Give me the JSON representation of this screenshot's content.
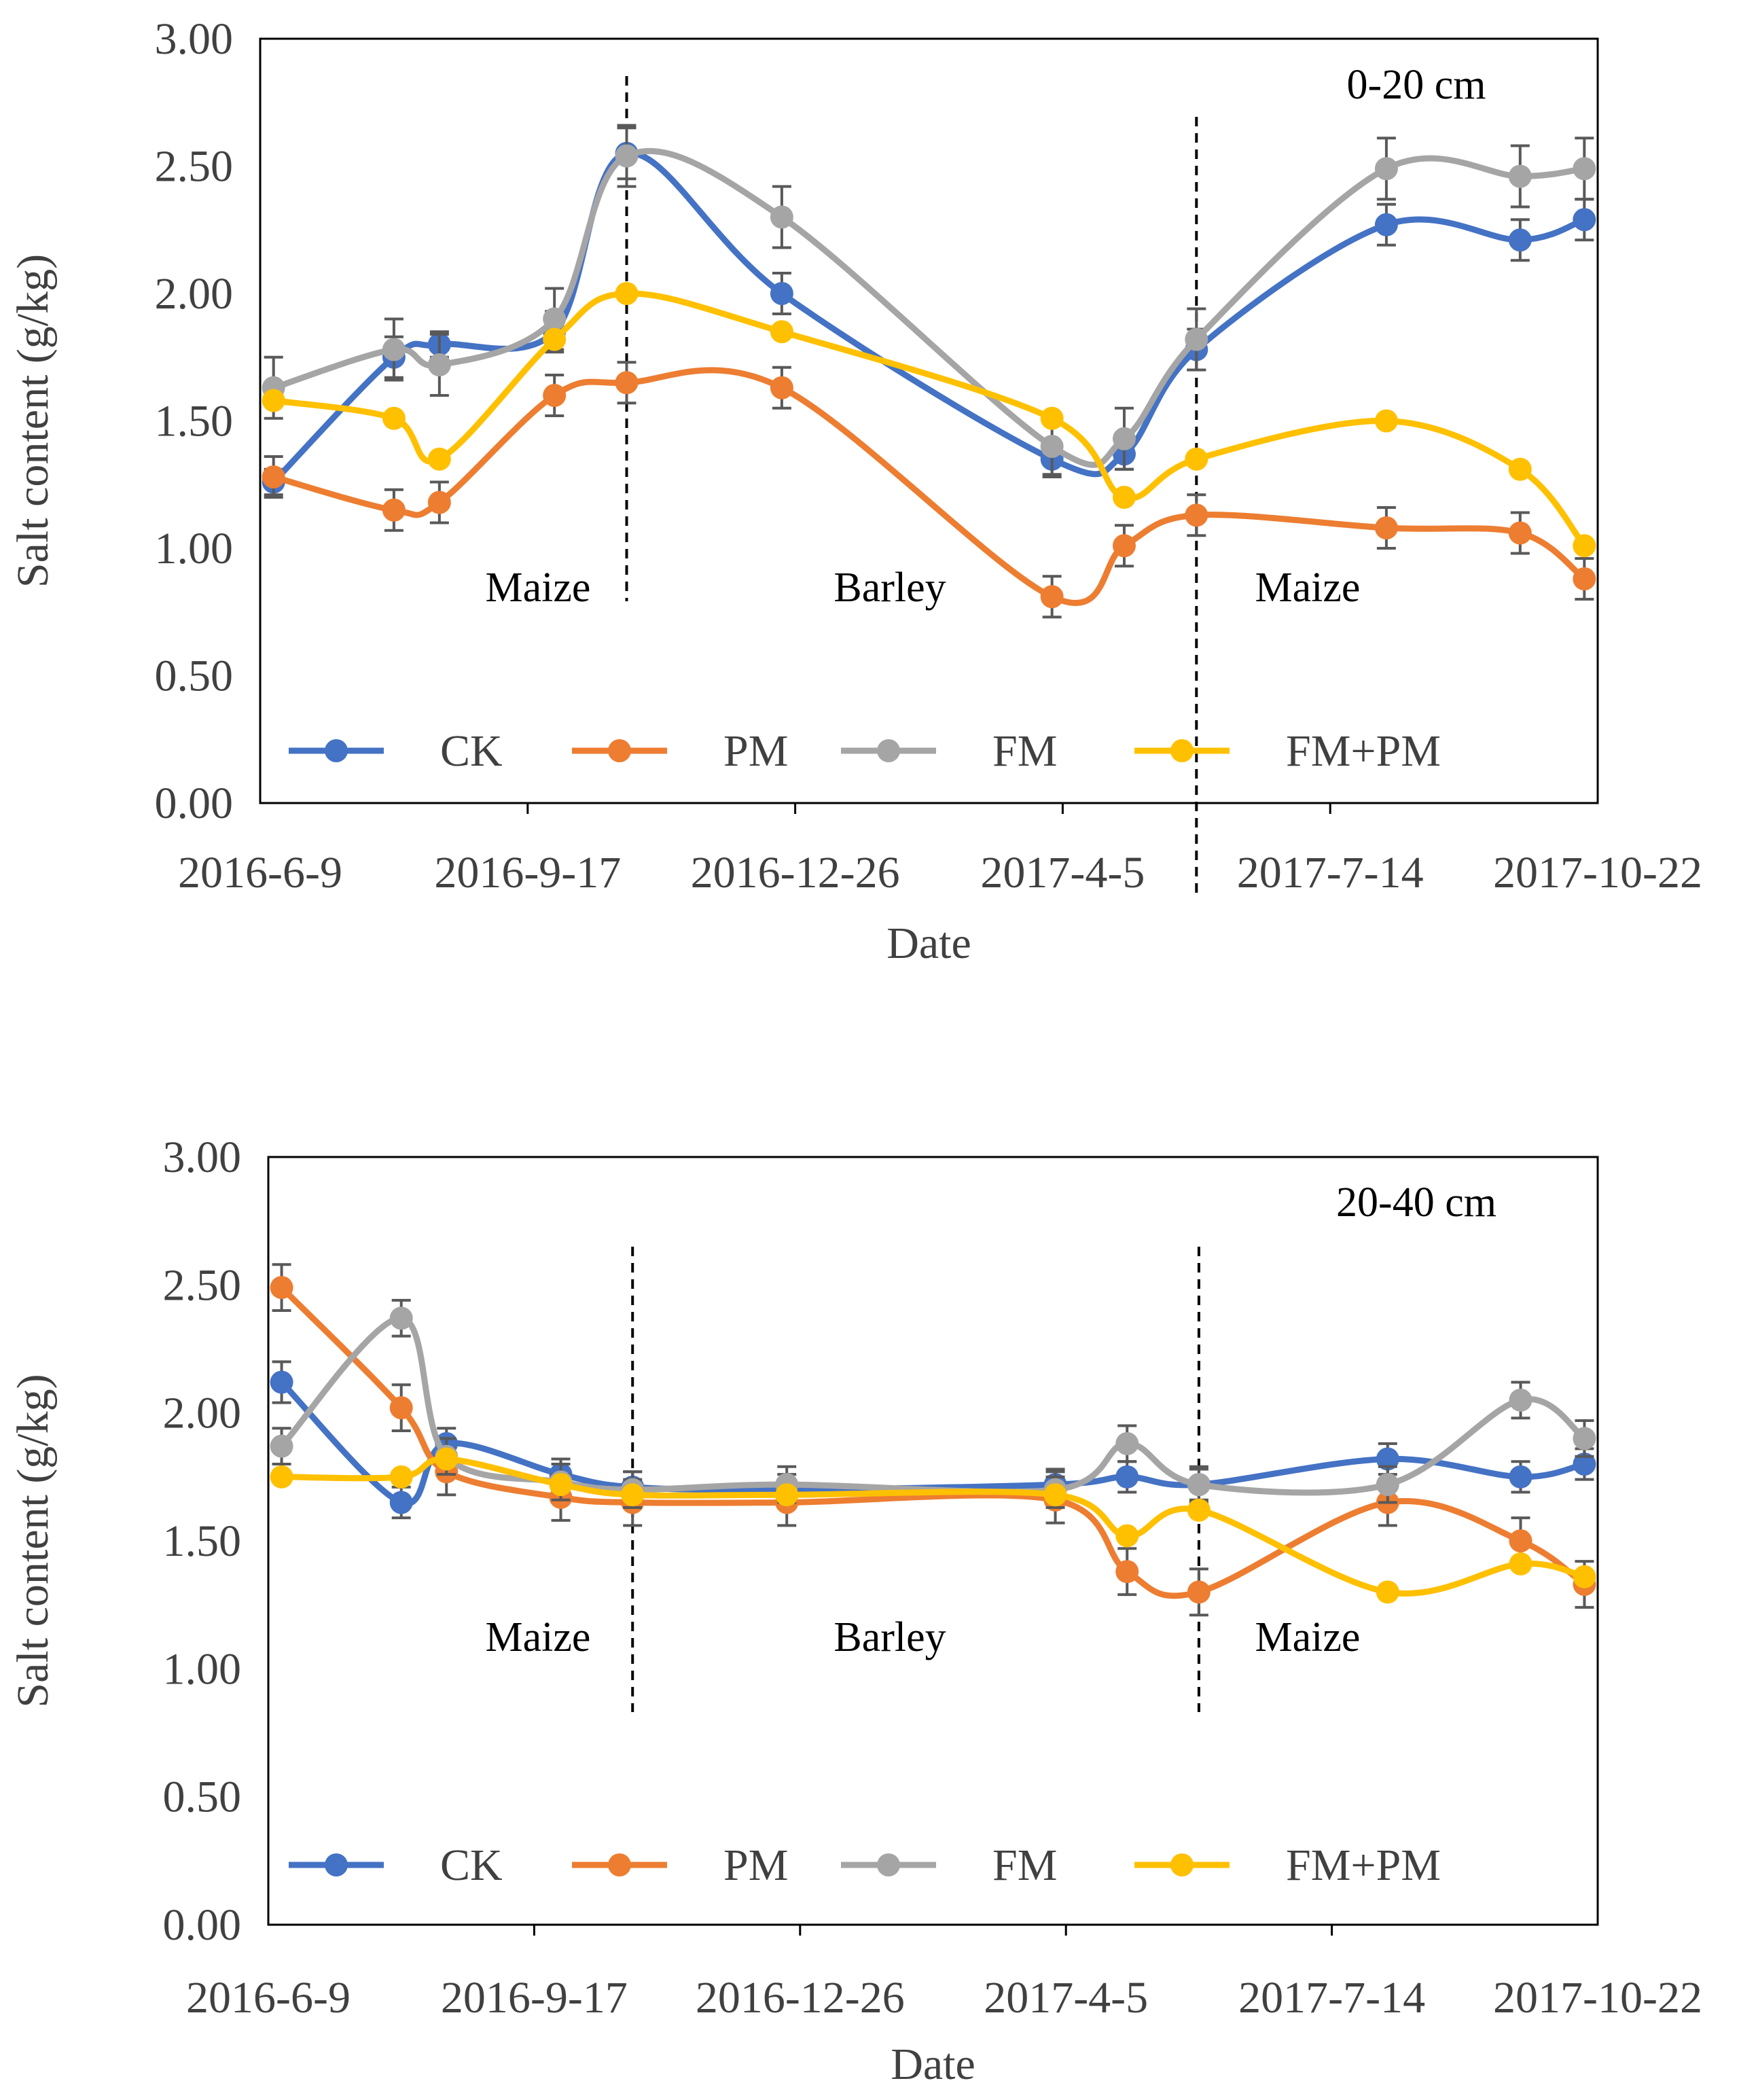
{
  "chart_data": [
    {
      "type": "line",
      "title": "",
      "depth_label": "0-20 cm",
      "xlabel": "Date",
      "ylabel": "Salt content (g/kg)",
      "ylim": [
        0,
        3
      ],
      "yticks": [
        "0.00",
        "0.50",
        "1.00",
        "1.50",
        "2.00",
        "2.50",
        "3.00"
      ],
      "xticks": [
        "2016-6-9",
        "2016-9-17",
        "2016-12-26",
        "2017-4-5",
        "2017-7-14",
        "2017-10-22"
      ],
      "xlim_days": [
        0,
        500
      ],
      "x_days": [
        5,
        50,
        67,
        110,
        137,
        195,
        296,
        323,
        350,
        421,
        471,
        495
      ],
      "annotations": [
        "Maize",
        "Barley",
        "Maize"
      ],
      "dividers_days": [
        137,
        350
      ],
      "series": [
        {
          "name": "CK",
          "color": "#4472C4",
          "values": [
            1.26,
            1.75,
            1.8,
            1.85,
            2.55,
            2.0,
            1.35,
            1.37,
            1.78,
            2.27,
            2.21,
            2.29
          ],
          "errors": [
            0.05,
            0.08,
            0.05,
            0.08,
            0.1,
            0.08,
            0.06,
            0.06,
            0.08,
            0.08,
            0.08,
            0.08
          ]
        },
        {
          "name": "PM",
          "color": "#ED7D31",
          "values": [
            1.28,
            1.15,
            1.18,
            1.6,
            1.65,
            1.63,
            0.81,
            1.01,
            1.13,
            1.08,
            1.06,
            0.88
          ],
          "errors": [
            0.08,
            0.08,
            0.08,
            0.08,
            0.08,
            0.08,
            0.08,
            0.08,
            0.08,
            0.08,
            0.08,
            0.08
          ]
        },
        {
          "name": "FM",
          "color": "#A5A5A5",
          "values": [
            1.63,
            1.78,
            1.72,
            1.9,
            2.54,
            2.3,
            1.4,
            1.43,
            1.82,
            2.49,
            2.46,
            2.49
          ],
          "errors": [
            0.12,
            0.12,
            0.12,
            0.12,
            0.12,
            0.12,
            0.12,
            0.12,
            0.12,
            0.12,
            0.12,
            0.12
          ]
        },
        {
          "name": "FM+PM",
          "color": "#FFC000",
          "values": [
            1.58,
            1.51,
            1.35,
            1.82,
            2.0,
            1.85,
            1.51,
            1.2,
            1.35,
            1.5,
            1.31,
            1.01
          ],
          "errors": [
            0,
            0,
            0,
            0,
            0,
            0,
            0,
            0,
            0,
            0,
            0,
            0
          ]
        }
      ]
    },
    {
      "type": "line",
      "title": "",
      "depth_label": "20-40 cm",
      "xlabel": "Date",
      "ylabel": "Salt content (g/kg)",
      "ylim": [
        0,
        3
      ],
      "yticks": [
        "0.00",
        "0.50",
        "1.00",
        "1.50",
        "2.00",
        "2.50",
        "3.00"
      ],
      "xticks": [
        "2016-6-9",
        "2016-9-17",
        "2016-12-26",
        "2017-4-5",
        "2017-7-14",
        "2017-10-22"
      ],
      "xlim_days": [
        0,
        500
      ],
      "x_days": [
        5,
        50,
        67,
        110,
        137,
        195,
        296,
        323,
        350,
        421,
        471,
        495
      ],
      "annotations": [
        "Maize",
        "Barley",
        "Maize"
      ],
      "dividers_days": [
        137,
        350
      ],
      "series": [
        {
          "name": "CK",
          "color": "#4472C4",
          "values": [
            2.12,
            1.65,
            1.88,
            1.76,
            1.71,
            1.7,
            1.72,
            1.75,
            1.72,
            1.82,
            1.75,
            1.8
          ],
          "errors": [
            0.08,
            0.06,
            0.06,
            0.06,
            0.06,
            0.06,
            0.06,
            0.06,
            0.06,
            0.06,
            0.06,
            0.06
          ]
        },
        {
          "name": "PM",
          "color": "#ED7D31",
          "values": [
            2.49,
            2.02,
            1.77,
            1.67,
            1.65,
            1.65,
            1.66,
            1.38,
            1.3,
            1.65,
            1.5,
            1.33
          ],
          "errors": [
            0.09,
            0.09,
            0.09,
            0.09,
            0.09,
            0.09,
            0.09,
            0.09,
            0.09,
            0.09,
            0.09,
            0.09
          ]
        },
        {
          "name": "FM",
          "color": "#A5A5A5",
          "values": [
            1.87,
            2.37,
            1.83,
            1.73,
            1.7,
            1.72,
            1.7,
            1.88,
            1.72,
            1.72,
            2.05,
            1.9
          ],
          "errors": [
            0.07,
            0.07,
            0.07,
            0.07,
            0.07,
            0.07,
            0.07,
            0.07,
            0.07,
            0.07,
            0.07,
            0.07
          ]
        },
        {
          "name": "FM+PM",
          "color": "#FFC000",
          "values": [
            1.75,
            1.75,
            1.82,
            1.72,
            1.68,
            1.68,
            1.68,
            1.52,
            1.62,
            1.3,
            1.41,
            1.36
          ],
          "errors": [
            0,
            0,
            0,
            0,
            0,
            0,
            0,
            0,
            0,
            0,
            0,
            0
          ]
        }
      ]
    }
  ]
}
